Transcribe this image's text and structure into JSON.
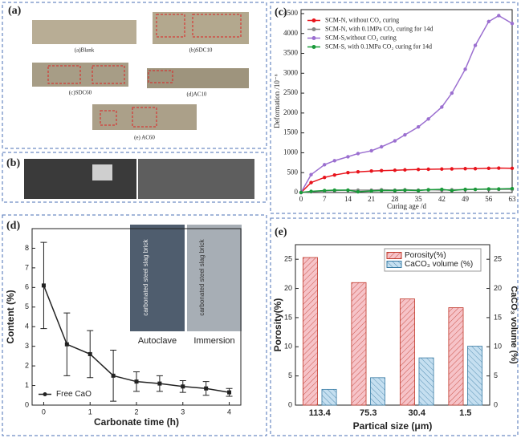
{
  "photos": {
    "a": {
      "panel": "(a)",
      "captions": [
        "(a)Blank",
        "(b)SDC10",
        "(c)SDC60",
        "(d)AC10",
        "(e) AC60"
      ]
    },
    "b": {
      "panel": "(b)"
    },
    "d_inset": {
      "labels": [
        "carbonated steel slag brick",
        "carbonated steel slag brick"
      ],
      "captions": [
        "Autoclave",
        "Immersion"
      ]
    }
  },
  "chart_data": [
    {
      "type": "line",
      "panel": "(c)",
      "xlabel": "Curing age /d",
      "ylabel": "Deformation /10⁻⁶",
      "xlim": [
        0,
        63
      ],
      "ylim": [
        0,
        4600
      ],
      "xticks": [
        0,
        7,
        14,
        21,
        28,
        35,
        42,
        49,
        56,
        63
      ],
      "yticks": [
        0,
        500,
        1000,
        1500,
        2000,
        2500,
        3000,
        3500,
        4000,
        4500
      ],
      "legend": "upper left",
      "x": [
        0,
        3,
        7,
        10,
        14,
        17,
        21,
        24,
        28,
        31,
        35,
        38,
        42,
        45,
        49,
        52,
        56,
        59,
        63
      ],
      "series": [
        {
          "name": "SCM-N, without CO₂ curing",
          "color": "#e8141c",
          "values": [
            0,
            250,
            380,
            440,
            500,
            520,
            540,
            550,
            560,
            570,
            580,
            585,
            590,
            595,
            600,
            600,
            610,
            615,
            610
          ]
        },
        {
          "name": "SCM-N, with 0.1MPa CO₂ curing for 14d",
          "color": "#888888",
          "values": [
            0,
            20,
            40,
            50,
            60,
            60,
            60,
            70,
            60,
            70,
            60,
            70,
            60,
            70,
            70,
            80,
            80,
            80,
            80
          ]
        },
        {
          "name": "SCM-S,without CO₂ curing",
          "color": "#9b6fd0",
          "values": [
            0,
            450,
            700,
            800,
            900,
            980,
            1050,
            1150,
            1300,
            1450,
            1650,
            1850,
            2150,
            2500,
            3100,
            3700,
            4300,
            4450,
            4250
          ]
        },
        {
          "name": "SCM-S, with 0.1MPa CO₂ curing for 14d",
          "color": "#1a9a3a",
          "values": [
            0,
            30,
            50,
            60,
            60,
            20,
            40,
            50,
            50,
            60,
            50,
            70,
            80,
            50,
            80,
            80,
            90,
            90,
            100
          ]
        }
      ]
    },
    {
      "type": "line",
      "panel": "(d)",
      "xlabel": "Carbonate time (h)",
      "ylabel": "Content (%)",
      "xlim": [
        -0.25,
        4.25
      ],
      "ylim": [
        0,
        9
      ],
      "xticks": [
        0,
        1,
        2,
        3,
        4
      ],
      "yticks": [
        0,
        1,
        2,
        3,
        4,
        5,
        6,
        7,
        8
      ],
      "legend": "lower left",
      "x": [
        0,
        0.5,
        1,
        1.5,
        2,
        2.5,
        3,
        3.5,
        4
      ],
      "series": [
        {
          "name": "Free CaO",
          "color": "#222222",
          "values": [
            6.1,
            3.1,
            2.6,
            1.5,
            1.2,
            1.1,
            0.95,
            0.85,
            0.65
          ],
          "errors": [
            2.2,
            1.6,
            1.2,
            1.3,
            0.5,
            0.4,
            0.3,
            0.35,
            0.2
          ]
        }
      ]
    },
    {
      "type": "bar",
      "panel": "(e)",
      "xlabel": "Partical size (μm)",
      "ylabel": "Porosity(%)",
      "y2label": "CaCO₃ volume (%)",
      "ylim": [
        0,
        27.5
      ],
      "yticks": [
        0,
        5,
        10,
        15,
        20,
        25
      ],
      "y2lim": [
        0,
        27.5
      ],
      "y2ticks": [
        0,
        5,
        10,
        15,
        20,
        25
      ],
      "legend": "upper right",
      "categories": [
        "113.4",
        "75.3",
        "30.4",
        "1.5"
      ],
      "series": [
        {
          "name": "Porosity(%)",
          "color": "#f6c3c8",
          "edge": "#c0392b",
          "values": [
            25.3,
            21,
            18.2,
            16.7
          ]
        },
        {
          "name": "CaCO₃ volume (%)",
          "color": "#c5dff0",
          "edge": "#3a7ca5",
          "axis": "y2",
          "values": [
            2.7,
            4.7,
            8.1,
            10.1
          ]
        }
      ]
    }
  ]
}
